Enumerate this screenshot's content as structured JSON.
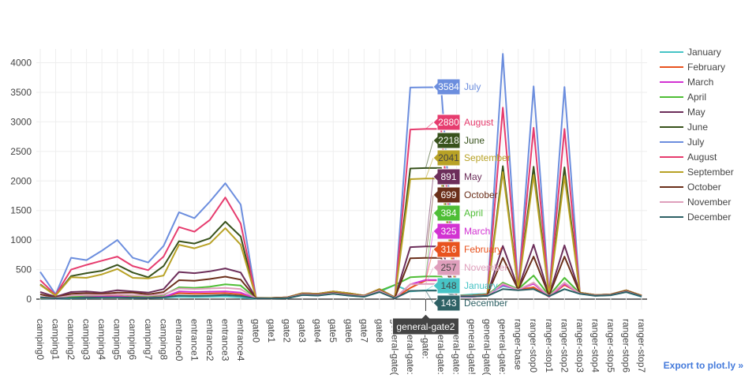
{
  "export_link": "Export to plot.ly »",
  "hover_x_label": "general-gate2",
  "chart_data": {
    "type": "line",
    "categories": [
      "camping0",
      "camping1",
      "camping2",
      "camping3",
      "camping4",
      "camping5",
      "camping6",
      "camping7",
      "camping8",
      "entrance0",
      "entrance1",
      "entrance2",
      "entrance3",
      "entrance4",
      "gate0",
      "gate1",
      "gate2",
      "gate3",
      "gate4",
      "gate5",
      "gate6",
      "gate7",
      "gate8",
      "general-gate0",
      "general-gate1",
      "general-gate2",
      "general-gate3",
      "general-gate4",
      "general-gate5",
      "general-gate6",
      "general-gate7",
      "ranger-base",
      "ranger-stop0",
      "ranger-stop1",
      "ranger-stop2",
      "ranger-stop3",
      "ranger-stop4",
      "ranger-stop5",
      "ranger-stop6",
      "ranger-stop7"
    ],
    "xtick_labels": [
      "camping0",
      "camping1",
      "camping2",
      "camping3",
      "camping4",
      "camping5",
      "camping6",
      "camping7",
      "camping8",
      "entrance0",
      "entrance1",
      "entrance2",
      "entrance3",
      "entrance4",
      "gate0",
      "gate1",
      "gate2",
      "gate3",
      "gate4",
      "gate5",
      "gate6",
      "gate7",
      "gate8",
      "general-gate0",
      "general-gate1",
      "general-gate2",
      "general-gate3",
      "general-gate4",
      "general-gate5",
      "general-gate6",
      "general-gate7",
      "ranger-base",
      "ranger-stop0",
      "ranger-stop1",
      "ranger-stop2",
      "ranger-stop3",
      "ranger-stop4",
      "ranger-stop5",
      "ranger-stop6",
      "ranger-stop7"
    ],
    "xtick_display": [
      "camping0",
      "camping1",
      "camping2",
      "camping3",
      "camping4",
      "camping5",
      "camping6",
      "camping7",
      "camping8",
      "entrance0",
      "entrance1",
      "entrance2",
      "entrance3",
      "entrance4",
      "gate0",
      "gate1",
      "gate2",
      "gate3",
      "gate4",
      "gate5",
      "gate6",
      "gate7",
      "gate8",
      "general-gate(",
      "general-gate:",
      "eral-gate:",
      "general-gate:",
      "general-gate:",
      "general-gate!",
      "general-gate(",
      "general-gate:",
      "ranger-base",
      "ranger-stop0",
      "ranger-stop1",
      "ranger-stop2",
      "ranger-stop3",
      "ranger-stop4",
      "ranger-stop5",
      "ranger-stop6",
      "ranger-stop7"
    ],
    "yticks": [
      0,
      500,
      1000,
      1500,
      2000,
      2500,
      3000,
      3500,
      4000
    ],
    "ytick_labels": [
      "0",
      "500",
      "1000",
      "1500",
      "2000",
      "2500",
      "3000",
      "3500",
      "4000"
    ],
    "ylim": [
      -150,
      4250
    ],
    "grid": true,
    "legend_position": "right",
    "hover_index": 25,
    "series": [
      {
        "name": "January",
        "color": "#47c4c6",
        "values": [
          10,
          5,
          15,
          20,
          25,
          30,
          20,
          20,
          25,
          40,
          35,
          40,
          45,
          30,
          5,
          10,
          15,
          70,
          60,
          90,
          60,
          40,
          120,
          240,
          130,
          148,
          150,
          60,
          80,
          90,
          220,
          170,
          180,
          60,
          170,
          90,
          60,
          70,
          120,
          40
        ]
      },
      {
        "name": "February",
        "color": "#e8531f",
        "values": [
          20,
          10,
          30,
          40,
          45,
          50,
          35,
          30,
          40,
          100,
          90,
          95,
          100,
          80,
          10,
          10,
          20,
          80,
          70,
          110,
          80,
          50,
          150,
          15,
          190,
          316,
          316,
          40,
          40,
          60,
          260,
          160,
          200,
          40,
          240,
          100,
          60,
          70,
          130,
          50
        ]
      },
      {
        "name": "March",
        "color": "#d233d2",
        "values": [
          15,
          10,
          25,
          35,
          40,
          45,
          30,
          25,
          35,
          130,
          120,
          125,
          130,
          110,
          10,
          15,
          20,
          75,
          65,
          100,
          70,
          45,
          140,
          15,
          250,
          325,
          325,
          40,
          40,
          60,
          240,
          160,
          260,
          40,
          260,
          95,
          60,
          70,
          125,
          45
        ]
      },
      {
        "name": "April",
        "color": "#4fbe36",
        "values": [
          20,
          15,
          40,
          60,
          70,
          80,
          60,
          50,
          70,
          200,
          190,
          210,
          250,
          230,
          15,
          15,
          25,
          80,
          70,
          110,
          80,
          50,
          140,
          240,
          370,
          384,
          384,
          50,
          50,
          70,
          280,
          170,
          400,
          60,
          360,
          100,
          60,
          70,
          130,
          50
        ]
      },
      {
        "name": "May",
        "color": "#6c2e5a",
        "values": [
          120,
          40,
          120,
          130,
          110,
          150,
          130,
          110,
          170,
          460,
          440,
          470,
          520,
          450,
          20,
          20,
          30,
          90,
          80,
          120,
          90,
          60,
          160,
          30,
          880,
          891,
          891,
          60,
          60,
          80,
          900,
          180,
          920,
          70,
          910,
          110,
          70,
          80,
          150,
          60
        ]
      },
      {
        "name": "June",
        "color": "#38521c",
        "values": [
          250,
          60,
          390,
          440,
          480,
          580,
          450,
          370,
          560,
          980,
          940,
          1030,
          1310,
          1060,
          20,
          20,
          30,
          100,
          90,
          130,
          100,
          60,
          170,
          30,
          2210,
          2218,
          2218,
          60,
          60,
          80,
          2250,
          170,
          2240,
          60,
          2230,
          110,
          70,
          80,
          150,
          60
        ]
      },
      {
        "name": "July",
        "color": "#6c8ede",
        "values": [
          460,
          80,
          700,
          660,
          820,
          1000,
          700,
          620,
          900,
          1470,
          1370,
          1650,
          1960,
          1600,
          25,
          20,
          30,
          100,
          90,
          130,
          100,
          60,
          170,
          30,
          3580,
          3584,
          3584,
          60,
          60,
          80,
          4150,
          170,
          3600,
          60,
          3590,
          110,
          70,
          80,
          150,
          60
        ]
      },
      {
        "name": "August",
        "color": "#e63c6e",
        "values": [
          320,
          70,
          500,
          580,
          650,
          720,
          560,
          490,
          720,
          1220,
          1140,
          1340,
          1720,
          1280,
          20,
          20,
          30,
          100,
          90,
          130,
          100,
          60,
          170,
          30,
          2870,
          2880,
          2880,
          60,
          60,
          80,
          3240,
          170,
          2900,
          60,
          2880,
          110,
          70,
          80,
          150,
          60
        ]
      },
      {
        "name": "September",
        "color": "#b8a226",
        "values": [
          240,
          60,
          370,
          360,
          420,
          510,
          360,
          350,
          400,
          920,
          860,
          940,
          1200,
          920,
          20,
          20,
          30,
          100,
          90,
          130,
          100,
          60,
          170,
          30,
          2030,
          2041,
          2041,
          60,
          60,
          80,
          2150,
          170,
          2100,
          60,
          2080,
          110,
          70,
          80,
          150,
          60
        ]
      },
      {
        "name": "October",
        "color": "#6b2f1a",
        "values": [
          80,
          30,
          90,
          100,
          90,
          110,
          110,
          80,
          120,
          320,
          310,
          340,
          380,
          330,
          15,
          15,
          25,
          90,
          80,
          110,
          80,
          55,
          150,
          25,
          690,
          699,
          699,
          55,
          55,
          70,
          700,
          160,
          720,
          60,
          720,
          100,
          65,
          75,
          140,
          55
        ]
      },
      {
        "name": "November",
        "color": "#df9fbc",
        "values": [
          40,
          20,
          60,
          70,
          70,
          80,
          70,
          60,
          80,
          180,
          170,
          180,
          190,
          170,
          10,
          10,
          20,
          80,
          70,
          100,
          70,
          50,
          140,
          20,
          250,
          257,
          257,
          50,
          50,
          60,
          260,
          160,
          280,
          50,
          280,
          95,
          60,
          70,
          130,
          50
        ]
      },
      {
        "name": "December",
        "color": "#2e6165",
        "values": [
          30,
          15,
          20,
          25,
          30,
          30,
          25,
          20,
          30,
          60,
          55,
          60,
          70,
          55,
          10,
          10,
          15,
          70,
          60,
          90,
          60,
          40,
          120,
          15,
          140,
          143,
          143,
          45,
          45,
          55,
          170,
          150,
          170,
          50,
          170,
          90,
          55,
          65,
          120,
          45
        ]
      }
    ],
    "hover_labels": [
      {
        "series": "July",
        "value": "3584"
      },
      {
        "series": "August",
        "value": "2880"
      },
      {
        "series": "June",
        "value": "2218"
      },
      {
        "series": "September",
        "value": "2041"
      },
      {
        "series": "May",
        "value": "891"
      },
      {
        "series": "October",
        "value": "699"
      },
      {
        "series": "April",
        "value": "384"
      },
      {
        "series": "March",
        "value": "325"
      },
      {
        "series": "February",
        "value": "316"
      },
      {
        "series": "November",
        "value": "257"
      },
      {
        "series": "January",
        "value": "148"
      },
      {
        "series": "December",
        "value": "143"
      }
    ]
  }
}
